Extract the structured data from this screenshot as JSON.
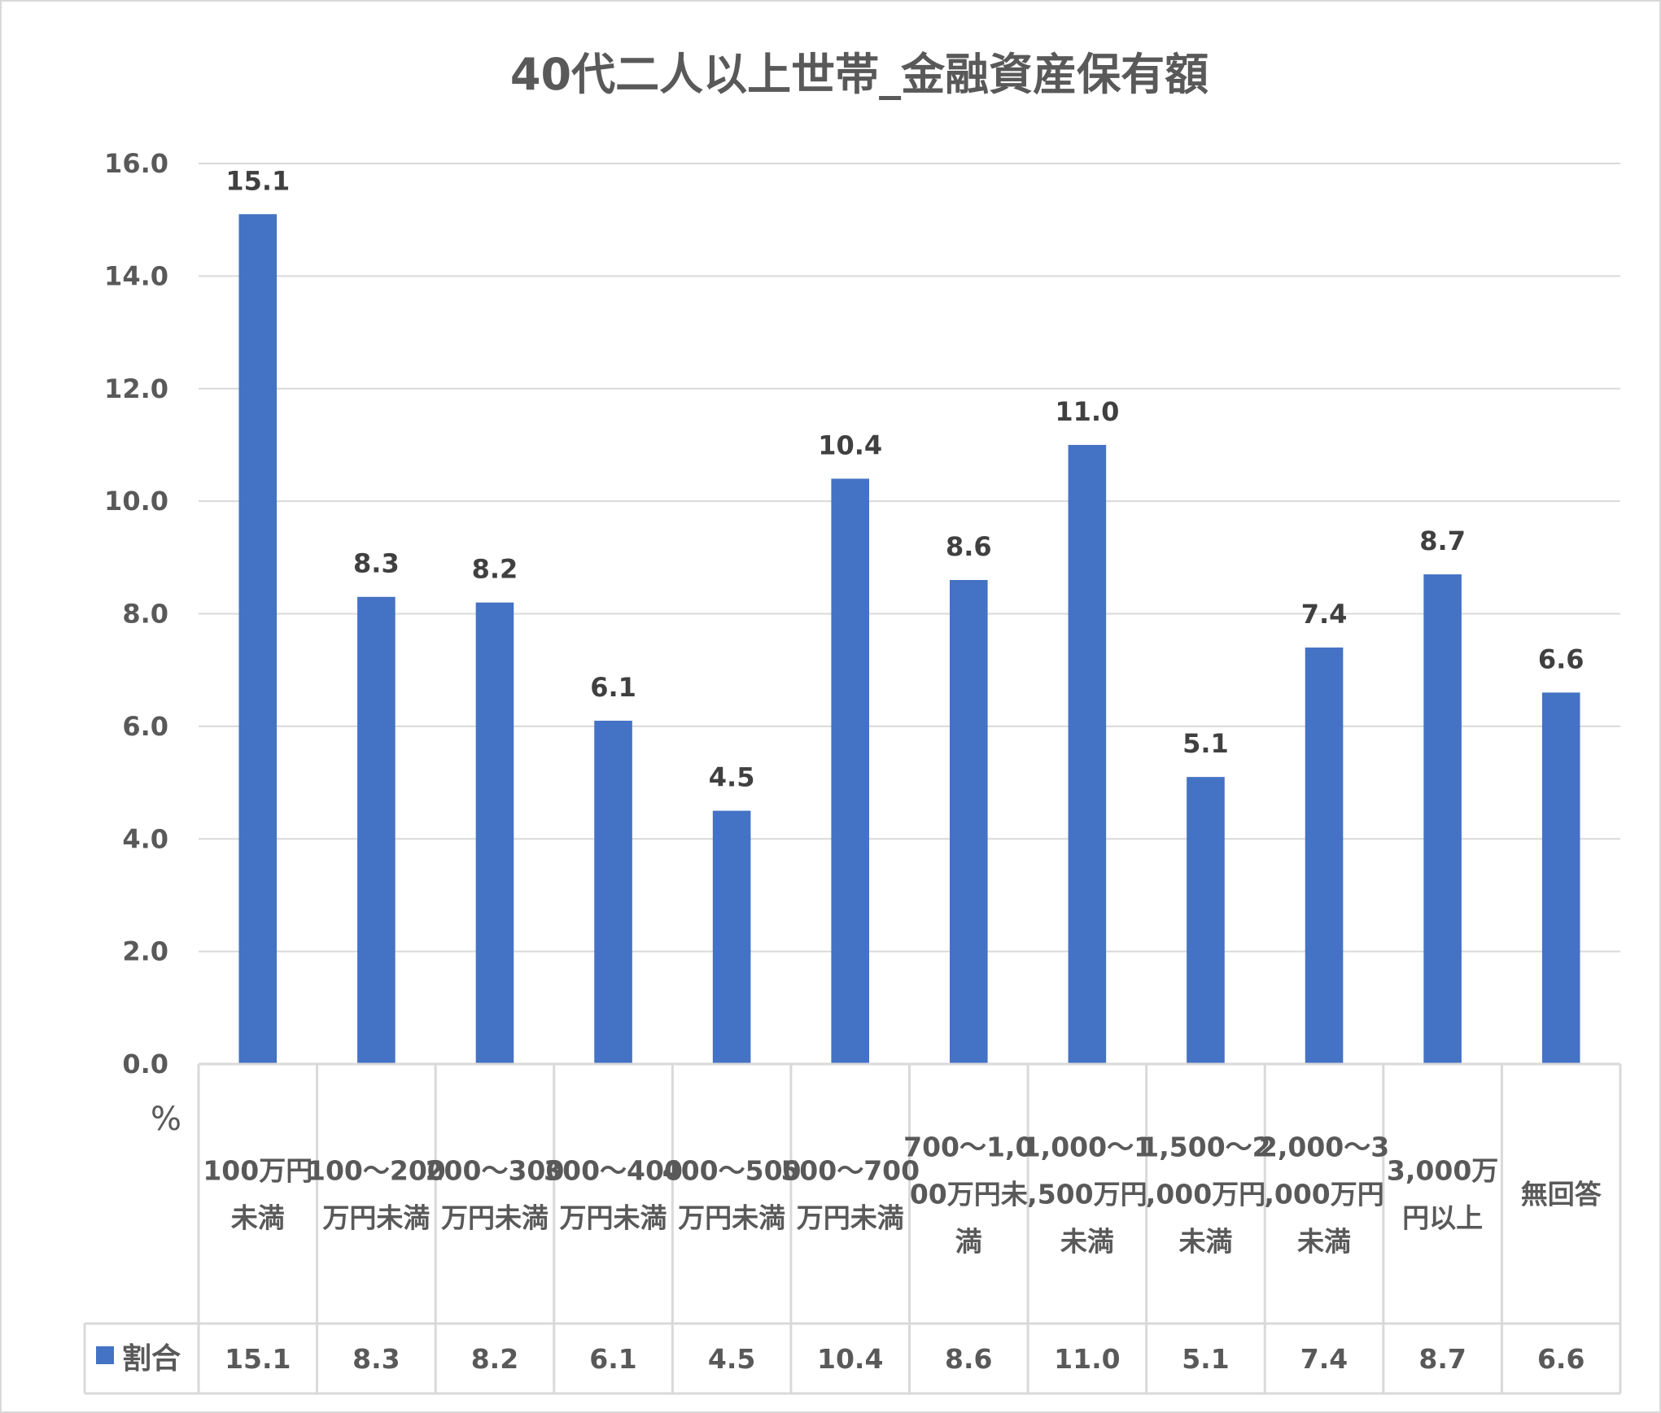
{
  "chart_data": {
    "type": "bar",
    "title": "40代二人以上世帯_金融資産保有額",
    "ylabel": "%",
    "ylim": [
      0,
      16
    ],
    "yticks": [
      "0.0",
      "2.0",
      "4.0",
      "6.0",
      "8.0",
      "10.0",
      "12.0",
      "14.0",
      "16.0"
    ],
    "grid": true,
    "data_table": true,
    "categories": [
      "100万円未満",
      "100～200万円未満",
      "200～300万円未満",
      "300～400万円未満",
      "400～500万円未満",
      "500～700万円未満",
      "700～1,000万円未満",
      "1,000～1,500万円未満",
      "1,500～2,000万円未満",
      "2,000～3,000万円未満",
      "3,000万円以上",
      "無回答"
    ],
    "series": [
      {
        "name": "割合",
        "color": "#4472c4",
        "values": [
          15.1,
          8.3,
          8.2,
          6.1,
          4.5,
          10.4,
          8.6,
          11.0,
          5.1,
          7.4,
          8.7,
          6.6
        ],
        "labels": [
          "15.1",
          "8.3",
          "8.2",
          "6.1",
          "4.5",
          "10.4",
          "8.6",
          "11.0",
          "5.1",
          "7.4",
          "8.7",
          "6.6"
        ]
      }
    ]
  }
}
